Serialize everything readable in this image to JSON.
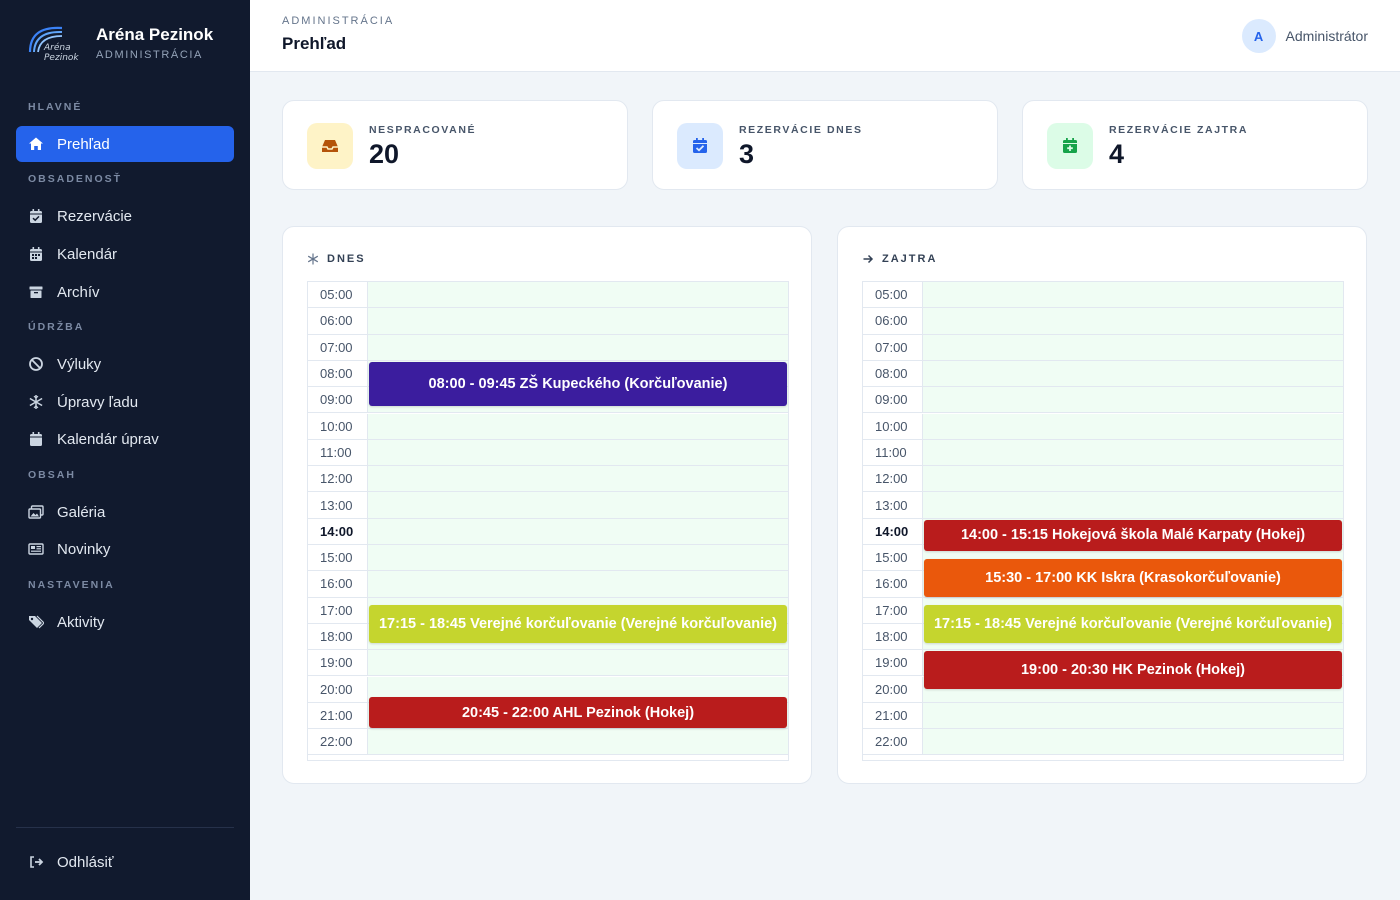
{
  "brand": {
    "logo_text_1": "Aréna",
    "logo_text_2": "Pezinok",
    "title": "Aréna Pezinok",
    "subtitle": "ADMINISTRÁCIA"
  },
  "sidebar": {
    "sections": [
      {
        "label": "HLAVNÉ"
      },
      {
        "label": "OBSADENOSŤ"
      },
      {
        "label": "ÚDRŽBA"
      },
      {
        "label": "OBSAH"
      },
      {
        "label": "NASTAVENIA"
      }
    ],
    "items": [
      {
        "label": "Prehľad",
        "icon": "home-icon",
        "active": true
      },
      {
        "label": "Rezervácie",
        "icon": "calendar-check-icon"
      },
      {
        "label": "Kalendár",
        "icon": "calendar-grid-icon"
      },
      {
        "label": "Archív",
        "icon": "archive-icon"
      },
      {
        "label": "Výluky",
        "icon": "ban-icon"
      },
      {
        "label": "Úpravy ľadu",
        "icon": "snowflake-icon"
      },
      {
        "label": "Kalendár úprav",
        "icon": "calendar-icon"
      },
      {
        "label": "Galéria",
        "icon": "images-icon"
      },
      {
        "label": "Novinky",
        "icon": "newspaper-icon"
      },
      {
        "label": "Aktivity",
        "icon": "tags-icon"
      }
    ],
    "logout": {
      "label": "Odhlásiť",
      "icon": "logout-icon"
    }
  },
  "header": {
    "breadcrumb": "ADMINISTRÁCIA",
    "title": "Prehľad",
    "user": {
      "initial": "A",
      "name": "Administrátor"
    }
  },
  "stats": [
    {
      "label": "NESPRACOVANÉ",
      "value": "20",
      "icon": "inbox-icon",
      "bg": "#fef3c7",
      "fg": "#b45309"
    },
    {
      "label": "REZERVÁCIE DNES",
      "value": "3",
      "icon": "calendar-check-icon",
      "bg": "#dbeafe",
      "fg": "#2563eb"
    },
    {
      "label": "REZERVÁCIE ZAJTRA",
      "value": "4",
      "icon": "calendar-plus-icon",
      "bg": "#dcfce7",
      "fg": "#16a34a"
    }
  ],
  "schedules": [
    {
      "title": "DNES",
      "icon": "snowflake-icon",
      "hours": [
        "05:00",
        "06:00",
        "07:00",
        "08:00",
        "09:00",
        "10:00",
        "11:00",
        "12:00",
        "13:00",
        "14:00",
        "15:00",
        "16:00",
        "17:00",
        "18:00",
        "19:00",
        "20:00",
        "21:00",
        "22:00"
      ],
      "current_hour": "14:00",
      "events": [
        {
          "label": "08:00 - 09:45 ZŠ Kupeckého (Korčuľovanie)",
          "start": 8.0,
          "end": 9.75,
          "color": "#3b1d9e",
          "text_color": "#ffffff"
        },
        {
          "label": "17:15 - 18:45 Verejné korčuľovanie (Verejné korčuľovanie)",
          "start": 17.25,
          "end": 18.75,
          "color": "#c5d52e",
          "text_color": "#ffffff"
        },
        {
          "label": "20:45 - 22:00 AHL Pezinok (Hokej)",
          "start": 20.75,
          "end": 22.0,
          "color": "#b91c1c",
          "text_color": "#ffffff"
        }
      ]
    },
    {
      "title": "ZAJTRA",
      "icon": "arrow-right-icon",
      "hours": [
        "05:00",
        "06:00",
        "07:00",
        "08:00",
        "09:00",
        "10:00",
        "11:00",
        "12:00",
        "13:00",
        "14:00",
        "15:00",
        "16:00",
        "17:00",
        "18:00",
        "19:00",
        "20:00",
        "21:00",
        "22:00"
      ],
      "current_hour": "14:00",
      "events": [
        {
          "label": "14:00 - 15:15 Hokejová škola Malé Karpaty (Hokej)",
          "start": 14.0,
          "end": 15.25,
          "color": "#b91c1c",
          "text_color": "#ffffff"
        },
        {
          "label": "15:30 - 17:00 KK Iskra (Krasokorčuľovanie)",
          "start": 15.5,
          "end": 17.0,
          "color": "#ea580c",
          "text_color": "#ffffff"
        },
        {
          "label": "17:15 - 18:45 Verejné korčuľovanie (Verejné korčuľovanie)",
          "start": 17.25,
          "end": 18.75,
          "color": "#c5d52e",
          "text_color": "#ffffff"
        },
        {
          "label": "19:00 - 20:30 HK Pezinok (Hokej)",
          "start": 19.0,
          "end": 20.5,
          "color": "#b91c1c",
          "text_color": "#ffffff"
        }
      ]
    }
  ]
}
